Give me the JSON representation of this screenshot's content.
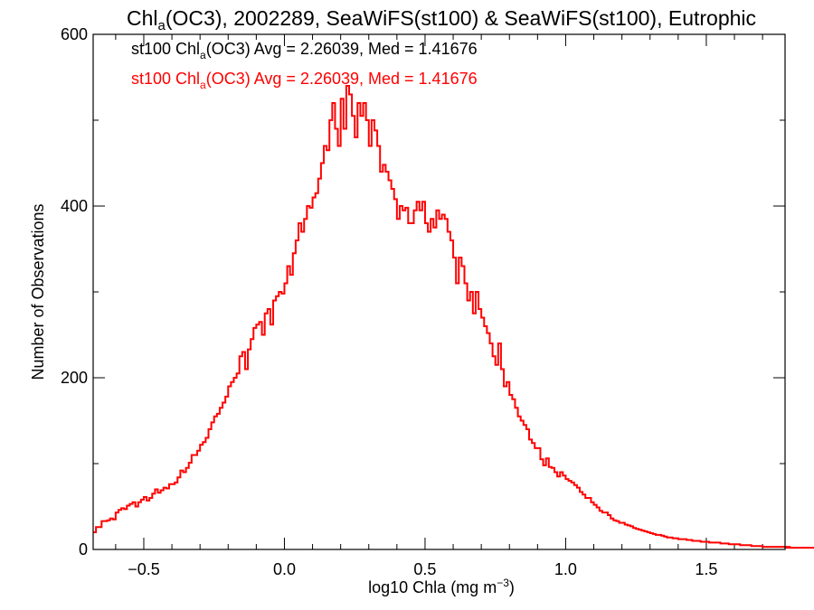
{
  "chart_data": {
    "type": "histogram",
    "title": {
      "pre": "Chl",
      "sub": "a",
      "post": "(OC3), 2002289, SeaWiFS(st100) & SeaWiFS(st100), Eutrophic"
    },
    "xlabel": {
      "pre": "log10 Chla (mg m",
      "sup": "−3",
      "post": ")"
    },
    "ylabel": "Number of Observations",
    "xlim": [
      -0.68,
      1.78
    ],
    "ylim": [
      0,
      600
    ],
    "xticks": [
      -0.5,
      0.0,
      0.5,
      1.0,
      1.5
    ],
    "xtick_labels": [
      "−0.5",
      "0.0",
      "0.5",
      "1.0",
      "1.5"
    ],
    "yticks": [
      0,
      200,
      400,
      600
    ],
    "ytick_labels": [
      "0",
      "200",
      "400",
      "600"
    ],
    "x_minor_step": 0.1,
    "y_minor_step": 100,
    "legend_placement": "top-left",
    "legend": [
      {
        "pre": "st100 Chl",
        "sub": "a",
        "post": "(OC3) Avg = 2.26039, Med = 1.41676",
        "color": "#000000"
      },
      {
        "pre": "st100 Chl",
        "sub": "a",
        "post": "(OC3) Avg = 2.26039, Med = 1.41676",
        "color": "#ff0000"
      }
    ],
    "series": [
      {
        "color": "#ff0000",
        "style": "step",
        "bin_width": 0.01,
        "x_start": -0.68,
        "values": [
          20,
          26,
          26,
          33,
          33,
          34,
          36,
          35,
          43,
          46,
          48,
          47,
          51,
          53,
          55,
          50,
          55,
          58,
          61,
          57,
          60,
          65,
          70,
          66,
          69,
          72,
          71,
          76,
          76,
          78,
          84,
          92,
          90,
          95,
          101,
          110,
          110,
          115,
          122,
          125,
          130,
          140,
          148,
          155,
          158,
          165,
          171,
          178,
          190,
          195,
          200,
          205,
          225,
          230,
          210,
          233,
          245,
          258,
          262,
          265,
          250,
          275,
          280,
          262,
          290,
          295,
          300,
          298,
          310,
          330,
          320,
          345,
          360,
          380,
          370,
          385,
          400,
          398,
          410,
          415,
          432,
          450,
          470,
          465,
          500,
          520,
          490,
          470,
          525,
          490,
          540,
          530,
          505,
          480,
          520,
          505,
          520,
          500,
          470,
          500,
          488,
          470,
          440,
          448,
          440,
          430,
          420,
          408,
          385,
          400,
          395,
          398,
          380,
          380,
          395,
          405,
          395,
          405,
          380,
          370,
          385,
          375,
          395,
          385,
          390,
          385,
          370,
          360,
          340,
          310,
          340,
          330,
          310,
          290,
          300,
          275,
          300,
          280,
          270,
          260,
          252,
          240,
          225,
          215,
          240,
          210,
          190,
          195,
          180,
          175,
          165,
          155,
          150,
          145,
          140,
          128,
          124,
          118,
          118,
          105,
          98,
          106,
          96,
          95,
          90,
          85,
          90,
          86,
          82,
          80,
          78,
          75,
          72,
          67,
          64,
          60,
          60,
          55,
          52,
          49,
          45,
          43,
          43,
          40,
          36,
          34,
          33,
          31,
          31,
          29,
          28,
          27,
          25,
          24,
          23,
          22,
          21,
          20,
          19,
          18,
          17,
          17,
          16,
          15,
          14,
          14,
          13,
          13,
          12,
          12,
          12,
          11,
          11,
          10,
          10,
          10,
          9,
          9,
          9,
          8,
          8,
          8,
          8,
          7,
          7,
          7,
          6,
          6,
          6,
          6,
          5,
          5,
          5,
          5,
          4,
          4,
          4,
          4,
          3,
          3,
          3,
          3,
          3,
          3,
          3,
          3,
          3,
          3,
          3,
          2,
          2,
          2,
          2,
          2,
          2,
          2,
          2,
          2,
          2,
          2,
          2,
          2
        ]
      }
    ]
  }
}
